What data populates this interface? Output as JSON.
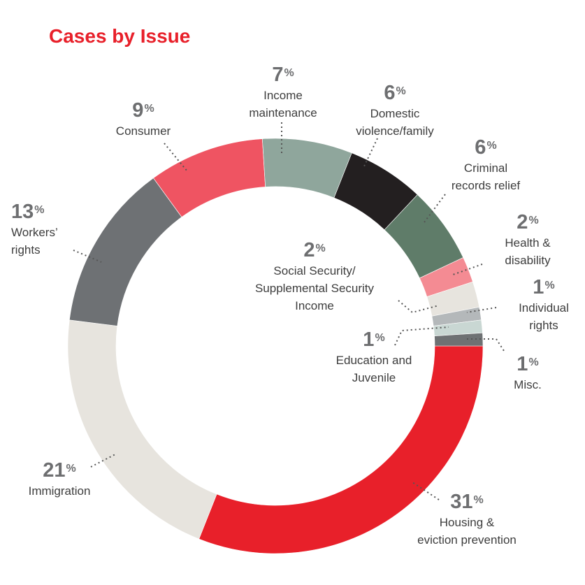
{
  "chart_data": {
    "type": "pie",
    "variant": "donut",
    "title": "Cases by Issue",
    "start": "3 o'clock, clockwise",
    "unit": "%",
    "slices": [
      {
        "label": "Housing & eviction prevention",
        "value": 31,
        "color": "#e8202a"
      },
      {
        "label": "Immigration",
        "value": 21,
        "color": "#e7e4de"
      },
      {
        "label": "Workers' rights",
        "value": 13,
        "color": "#6e7174"
      },
      {
        "label": "Consumer",
        "value": 9,
        "color": "#ef5462"
      },
      {
        "label": "Income maintenance",
        "value": 7,
        "color": "#8fa69c"
      },
      {
        "label": "Domestic violence/family",
        "value": 6,
        "color": "#231f20"
      },
      {
        "label": "Criminal records relief",
        "value": 6,
        "color": "#5f7c69"
      },
      {
        "label": "Health & disability",
        "value": 2,
        "color": "#f48b93"
      },
      {
        "label": "Social Security/ Supplemental Security Income",
        "value": 2,
        "color": "#e7e4de"
      },
      {
        "label": "Individual rights",
        "value": 1,
        "color": "#b4b8ba"
      },
      {
        "label": "Education and Juvenile",
        "value": 1,
        "color": "#c9d7d3"
      },
      {
        "label": "Misc.",
        "value": 1,
        "color": "#6e7173"
      }
    ],
    "display_labels": [
      {
        "num": "31",
        "lines": [
          "Housing &",
          "eviction prevention"
        ]
      },
      {
        "num": "21",
        "lines": [
          "Immigration"
        ]
      },
      {
        "num": "13",
        "lines": [
          "Workers’",
          "rights"
        ]
      },
      {
        "num": "9",
        "lines": [
          "Consumer"
        ]
      },
      {
        "num": "7",
        "lines": [
          "Income",
          "maintenance"
        ]
      },
      {
        "num": "6",
        "lines": [
          "Domestic",
          "violence/family"
        ]
      },
      {
        "num": "6",
        "lines": [
          "Criminal",
          "records relief"
        ]
      },
      {
        "num": "2",
        "lines": [
          "Health &",
          "disability"
        ]
      },
      {
        "num": "2",
        "lines": [
          "Social Security/",
          "Supplemental Security",
          "Income"
        ]
      },
      {
        "num": "1",
        "lines": [
          "Individual",
          "rights"
        ]
      },
      {
        "num": "1",
        "lines": [
          "Education and",
          "Juvenile"
        ]
      },
      {
        "num": "1",
        "lines": [
          "Misc."
        ]
      }
    ],
    "pct_symbol": "%"
  }
}
